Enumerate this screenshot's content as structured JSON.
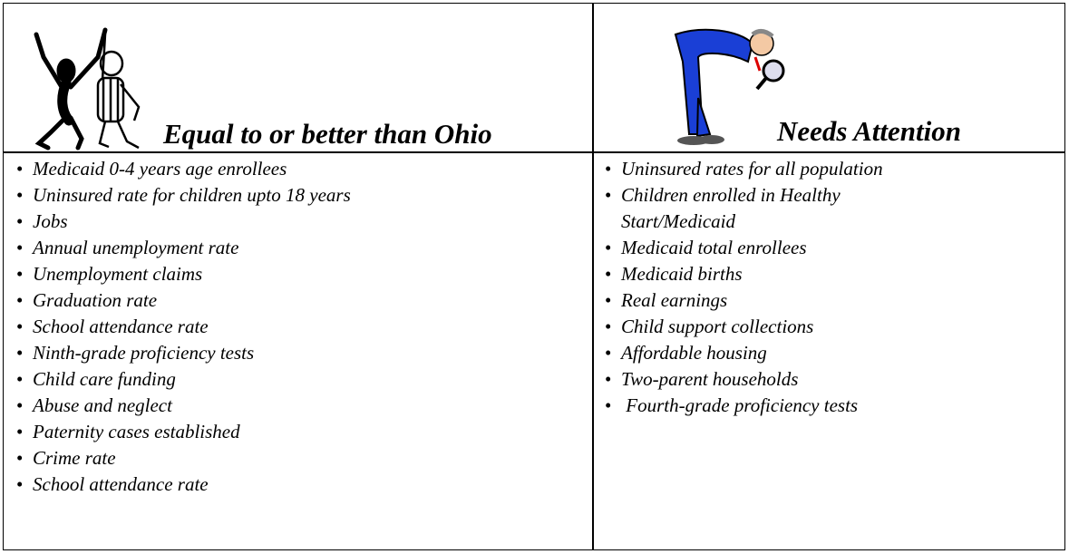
{
  "header": {
    "left_title": "Equal to or better than Ohio",
    "right_title": "Needs Attention"
  },
  "lists": {
    "left": [
      "Medicaid 0-4 years age enrollees",
      "Uninsured rate for children upto 18 years",
      "Jobs",
      "Annual unemployment rate",
      "Unemployment claims",
      "Graduation rate",
      "School attendance rate",
      "Ninth-grade proficiency tests",
      "Child care funding",
      "Abuse and neglect",
      "Paternity cases established",
      "Crime rate",
      "School attendance rate"
    ],
    "right": [
      "Uninsured rates for all population",
      "Children enrolled in Healthy Start/Medicaid",
      "Medicaid total enrollees",
      "Medicaid births",
      "Real earnings",
      "Child support collections",
      "Affordable housing",
      "Two-parent households",
      " Fourth-grade proficiency tests"
    ]
  }
}
